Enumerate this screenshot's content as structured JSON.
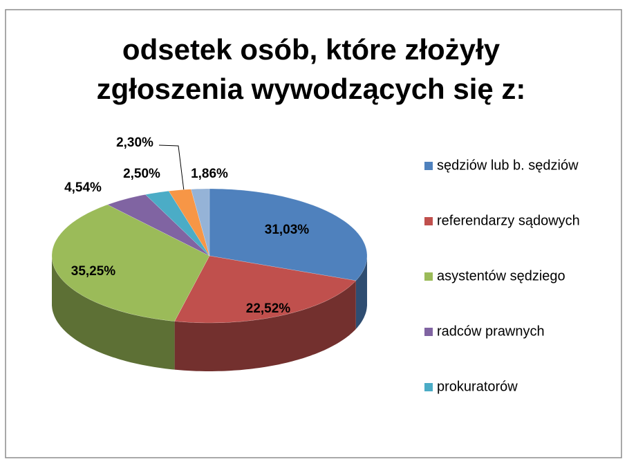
{
  "chart_data": {
    "type": "pie3d",
    "title": [
      "odsetek osób, które złożyły",
      "zgłoszenia wywodzących się z:"
    ],
    "categories": [
      "sędziów lub  b. sędziów",
      "referendarzy sądowych",
      "asystentów sędziego",
      "radców prawnych",
      "prokuratorów",
      null,
      null
    ],
    "values": [
      31.03,
      22.52,
      35.25,
      4.54,
      2.5,
      2.3,
      1.86
    ],
    "value_labels": [
      "31,03%",
      "22,52%",
      "35,25%",
      "4,54%",
      "2,50%",
      "2,30%",
      "1,86%"
    ],
    "colors": [
      "#4f81bd",
      "#c0504d",
      "#9bbb59",
      "#8064a2",
      "#4bacc6",
      "#f79646",
      "#95b3d7"
    ],
    "legend": "right"
  }
}
